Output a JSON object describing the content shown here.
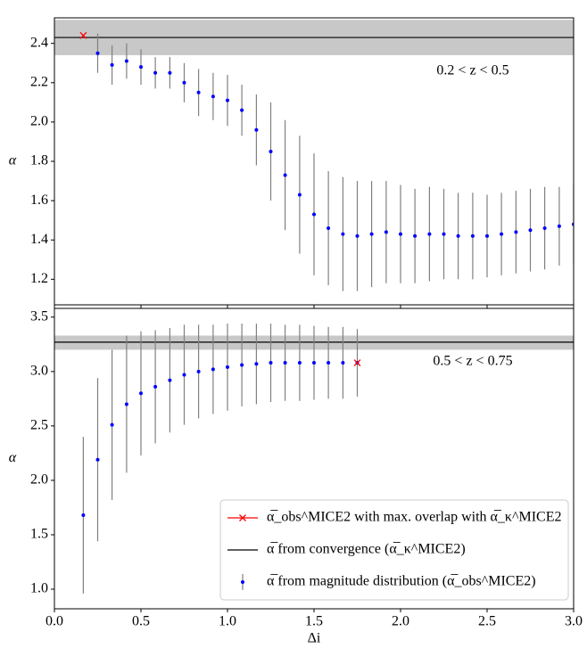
{
  "chart_data": [
    {
      "type": "errorbar",
      "ylabel": "α",
      "annotation": "0.2 < z < 0.5",
      "xlim": [
        0,
        3
      ],
      "ylim": [
        1.07,
        2.53
      ],
      "xticks": [
        0,
        0.5,
        1,
        1.5,
        2,
        2.5,
        3
      ],
      "yticks": [
        1.2,
        1.4,
        1.6,
        1.8,
        {
          "value": 2,
          "label": "2.0"
        },
        2.2,
        2.4
      ],
      "series": [
        {
          "kind": "highlight",
          "color": "#ff0000",
          "x": [
            0.167
          ],
          "values": [
            2.44
          ]
        },
        {
          "kind": "reference",
          "color": "#000000",
          "band_color": "#c8c8c8",
          "values": [
            2.43
          ],
          "band": [
            2.34,
            2.52
          ]
        },
        {
          "kind": "points",
          "color": "#0000ff",
          "error_color": "#808080",
          "x": [
            0.25,
            0.333,
            0.417,
            0.5,
            0.583,
            0.667,
            0.75,
            0.833,
            0.917,
            1.0,
            1.083,
            1.167,
            1.25,
            1.333,
            1.417,
            1.5,
            1.583,
            1.667,
            1.75,
            1.833,
            1.917,
            2.0,
            2.083,
            2.167,
            2.25,
            2.333,
            2.417,
            2.5,
            2.583,
            2.667,
            2.75,
            2.833,
            2.917,
            3.0
          ],
          "values": [
            2.35,
            2.29,
            2.31,
            2.28,
            2.25,
            2.25,
            2.2,
            2.15,
            2.13,
            2.11,
            2.06,
            1.96,
            1.85,
            1.73,
            1.63,
            1.53,
            1.46,
            1.43,
            1.42,
            1.43,
            1.44,
            1.43,
            1.42,
            1.43,
            1.43,
            1.42,
            1.42,
            1.42,
            1.43,
            1.44,
            1.45,
            1.46,
            1.47,
            1.48
          ],
          "errors": [
            0.1,
            0.1,
            0.09,
            0.09,
            0.08,
            0.08,
            0.1,
            0.12,
            0.12,
            0.13,
            0.13,
            0.18,
            0.25,
            0.28,
            0.3,
            0.31,
            0.29,
            0.29,
            0.28,
            0.27,
            0.26,
            0.25,
            0.24,
            0.24,
            0.23,
            0.22,
            0.22,
            0.21,
            0.21,
            0.21,
            0.21,
            0.21,
            0.2,
            0.2
          ]
        }
      ]
    },
    {
      "type": "errorbar",
      "ylabel": "α",
      "xlabel": "Δi",
      "annotation": "0.5 < z < 0.75",
      "xlim": [
        0,
        3
      ],
      "ylim": [
        0.82,
        3.58
      ],
      "xticks": [
        {
          "value": 0,
          "label": "0.0"
        },
        0.5,
        {
          "value": 1,
          "label": "1.0"
        },
        1.5,
        {
          "value": 2,
          "label": "2.0"
        },
        2.5,
        {
          "value": 3,
          "label": "3.0"
        }
      ],
      "yticks": [
        {
          "value": 1,
          "label": "1.0"
        },
        1.5,
        {
          "value": 2,
          "label": "2.0"
        },
        2.5,
        {
          "value": 3,
          "label": "3.0"
        },
        3.5
      ],
      "legend": "lower right",
      "series": [
        {
          "kind": "highlight",
          "name": "α̅_obs^MICE2 with max. overlap with α̅_κ^MICE2",
          "color": "#ff0000",
          "x": [
            1.75
          ],
          "values": [
            3.08
          ]
        },
        {
          "kind": "reference",
          "name": "α̅ from convergence (α̅_κ^MICE2)",
          "color": "#000000",
          "band_color": "#c8c8c8",
          "values": [
            3.27
          ],
          "band": [
            3.2,
            3.33
          ]
        },
        {
          "kind": "points",
          "name": "α̅ from magnitude distribution (α̅_obs^MICE2)",
          "color": "#0000ff",
          "error_color": "#808080",
          "x": [
            0.167,
            0.25,
            0.333,
            0.417,
            0.5,
            0.583,
            0.667,
            0.75,
            0.833,
            0.917,
            1.0,
            1.083,
            1.167,
            1.25,
            1.333,
            1.417,
            1.5,
            1.583,
            1.667,
            1.75
          ],
          "values": [
            1.68,
            2.19,
            2.51,
            2.7,
            2.8,
            2.86,
            2.92,
            2.97,
            3.0,
            3.02,
            3.04,
            3.06,
            3.07,
            3.08,
            3.08,
            3.08,
            3.08,
            3.08,
            3.08,
            3.08
          ],
          "errors": [
            0.72,
            0.75,
            0.69,
            0.63,
            0.57,
            0.52,
            0.48,
            0.46,
            0.43,
            0.41,
            0.4,
            0.38,
            0.37,
            0.36,
            0.35,
            0.35,
            0.34,
            0.33,
            0.33,
            0.31
          ]
        }
      ]
    }
  ]
}
